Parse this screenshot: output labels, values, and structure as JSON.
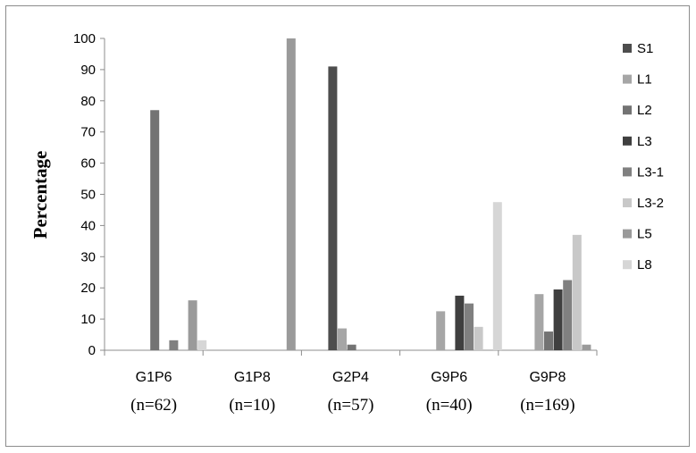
{
  "chart_data": {
    "type": "bar",
    "categories": [
      "G1P6",
      "G1P8",
      "G2P4",
      "G9P6",
      "G9P8"
    ],
    "category_counts": [
      "(n=62)",
      "(n=10)",
      "(n=57)",
      "(n=40)",
      "(n=169)"
    ],
    "ylabel": "Percentage",
    "xlabel": "",
    "ylim": [
      0,
      100
    ],
    "yticks": [
      0,
      10,
      20,
      30,
      40,
      50,
      60,
      70,
      80,
      90,
      100
    ],
    "legend_position": "right",
    "grid": false,
    "series": [
      {
        "name": "S1",
        "color": "#4d4d4d",
        "values": [
          0,
          0,
          91,
          0,
          0
        ]
      },
      {
        "name": "L1",
        "color": "#a6a6a6",
        "values": [
          0,
          0,
          7,
          12.5,
          18
        ]
      },
      {
        "name": "L2",
        "color": "#737373",
        "values": [
          77,
          0,
          1.8,
          0,
          6
        ]
      },
      {
        "name": "L3",
        "color": "#3f3f3f",
        "values": [
          0,
          0,
          0,
          17.5,
          19.5
        ]
      },
      {
        "name": "L3-1",
        "color": "#808080",
        "values": [
          3.2,
          0,
          0,
          15,
          22.5
        ]
      },
      {
        "name": "L3-2",
        "color": "#c8c8c8",
        "values": [
          0,
          0,
          0,
          7.5,
          37
        ]
      },
      {
        "name": "L5",
        "color": "#9a9a9a",
        "values": [
          16,
          100,
          0,
          0,
          1.8
        ]
      },
      {
        "name": "L8",
        "color": "#d6d6d6",
        "values": [
          3.2,
          0,
          0,
          47.5,
          0
        ]
      }
    ]
  }
}
